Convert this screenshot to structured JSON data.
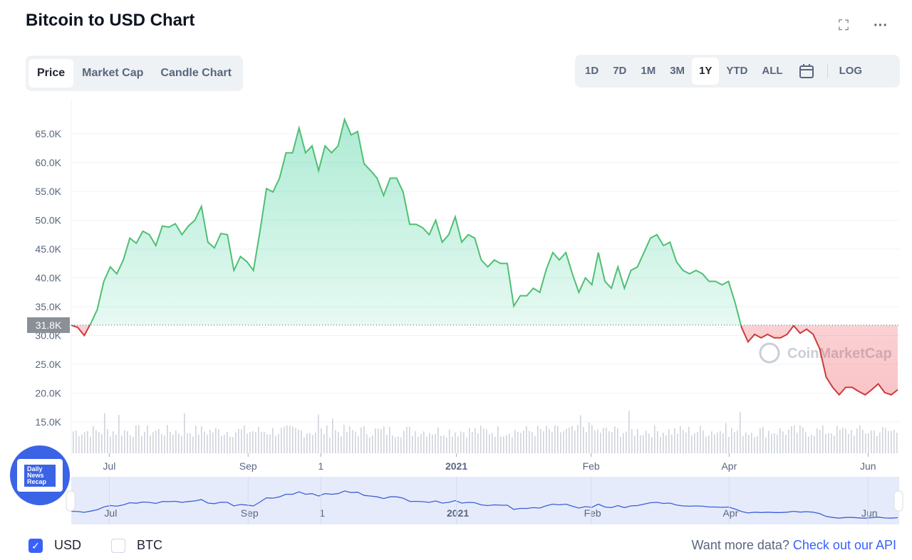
{
  "header": {
    "title": "Bitcoin to USD Chart",
    "fullscreen_icon": "expand-icon",
    "more_icon": "more-horizontal-icon"
  },
  "tabs": [
    {
      "label": "Price",
      "active": true
    },
    {
      "label": "Market Cap"
    },
    {
      "label": "Candle Chart"
    }
  ],
  "ranges": [
    {
      "label": "1D"
    },
    {
      "label": "7D"
    },
    {
      "label": "1M"
    },
    {
      "label": "3M"
    },
    {
      "label": "1Y",
      "active": true
    },
    {
      "label": "YTD"
    },
    {
      "label": "ALL"
    }
  ],
  "log_label": "LOG",
  "watermark": "CoinMarketCap",
  "badge": {
    "line1": "Daily",
    "line2": "News",
    "line3": "Recap"
  },
  "legend": {
    "usd": "USD",
    "btc": "BTC",
    "usd_checked": true,
    "btc_checked": false
  },
  "api": {
    "prefix": "Want more data?",
    "link": "Check out our API"
  },
  "colors": {
    "up": "#16c784",
    "up_line": "#4fbf73",
    "down": "#cc3b3b",
    "accent": "#3861fb"
  },
  "chart_data": {
    "type": "area",
    "title": "Bitcoin to USD Chart",
    "ylabel": "USD",
    "ylim": [
      10,
      69
    ],
    "yticks": [
      "15.0K",
      "20.0K",
      "25.0K",
      "30.0K",
      "35.0K",
      "40.0K",
      "45.0K",
      "50.0K",
      "55.0K",
      "60.0K",
      "65.0K"
    ],
    "ytick_values": [
      15,
      20,
      25,
      30,
      35,
      40,
      45,
      50,
      55,
      60,
      65
    ],
    "xticks": [
      "Jul",
      "Sep",
      "1",
      "2021",
      "Feb",
      "Apr",
      "Jun"
    ],
    "xtick_positions": [
      0.046,
      0.214,
      0.302,
      0.466,
      0.629,
      0.796,
      0.964
    ],
    "baseline": 31.8,
    "baseline_label": "31.8K",
    "unit": "K USD",
    "values": [
      31.8,
      31.4,
      30.0,
      32.1,
      34.5,
      39.4,
      41.9,
      40.7,
      43.1,
      46.9,
      46.0,
      48.1,
      47.5,
      45.6,
      49.0,
      48.8,
      49.4,
      47.5,
      49.0,
      50.0,
      52.4,
      46.2,
      45.2,
      47.7,
      47.5,
      41.3,
      43.7,
      42.8,
      41.3,
      48.1,
      55.5,
      54.9,
      57.3,
      61.7,
      61.7,
      66.0,
      61.7,
      62.9,
      58.6,
      62.9,
      61.7,
      62.9,
      67.5,
      64.8,
      65.4,
      59.8,
      58.6,
      57.3,
      54.3,
      57.3,
      57.3,
      54.9,
      49.3,
      49.3,
      48.7,
      47.5,
      50.0,
      46.2,
      47.5,
      50.6,
      46.2,
      47.5,
      46.9,
      43.1,
      41.9,
      43.1,
      42.5,
      42.5,
      35.1,
      36.9,
      36.9,
      38.2,
      37.5,
      41.5,
      44.4,
      43.1,
      44.4,
      40.7,
      37.5,
      40.0,
      38.8,
      44.4,
      39.4,
      38.2,
      41.9,
      38.2,
      41.3,
      41.9,
      44.4,
      46.9,
      47.5,
      45.6,
      46.2,
      42.8,
      41.3,
      40.7,
      41.3,
      40.7,
      39.4,
      39.4,
      38.8,
      39.4,
      35.7,
      31.4,
      28.9,
      30.2,
      29.6,
      30.2,
      29.6,
      29.6,
      30.2,
      31.7,
      30.4,
      31.1,
      30.2,
      27.7,
      22.8,
      21.0,
      19.7,
      21.0,
      21.0,
      20.3,
      19.7,
      20.6,
      21.6,
      20.1,
      19.7,
      20.6
    ]
  }
}
